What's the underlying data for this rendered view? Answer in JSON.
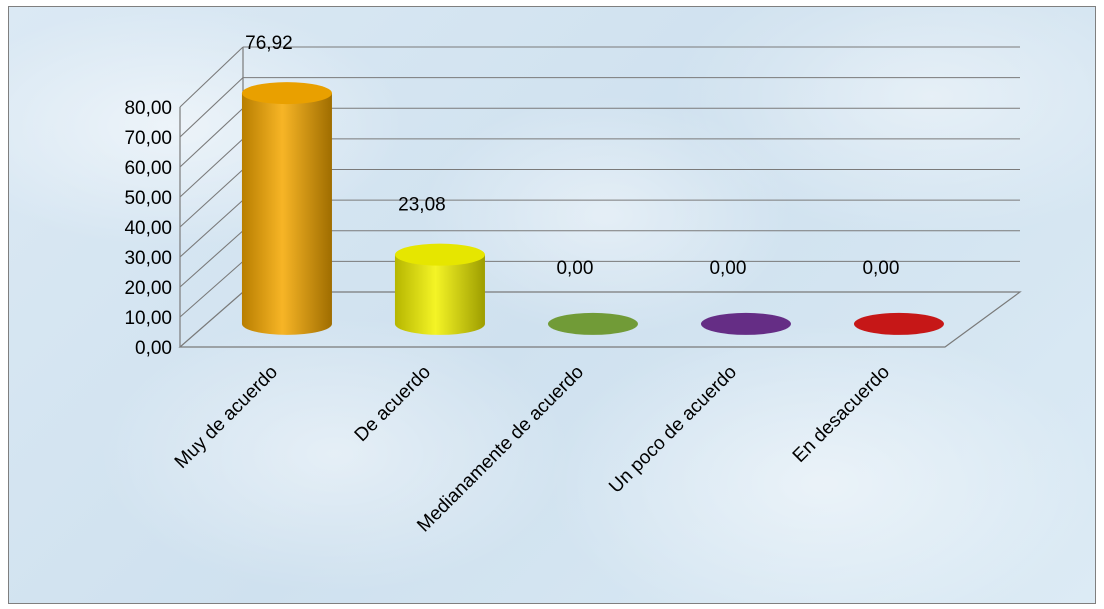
{
  "chart_data": {
    "type": "bar",
    "style": "3d-cylinder",
    "title": "",
    "xlabel": "",
    "ylabel": "",
    "categories": [
      "Muy de acuerdo",
      "De acuerdo",
      "Medianamente de acuerdo",
      "Un poco de acuerdo",
      "En desacuerdo"
    ],
    "values": [
      76.92,
      23.08,
      0.0,
      0.0,
      0.0
    ],
    "data_labels": [
      "76,92",
      "23,08",
      "0,00",
      "0,00",
      "0,00"
    ],
    "colors": [
      "#f5a800",
      "#f2f200",
      "#77a33a",
      "#6a2f8c",
      "#d01818"
    ],
    "ylim": [
      0,
      80
    ],
    "y_ticks": [
      "0,00",
      "10,00",
      "20,00",
      "30,00",
      "40,00",
      "50,00",
      "60,00",
      "70,00",
      "80,00"
    ],
    "y_tick_values": [
      0,
      10,
      20,
      30,
      40,
      50,
      60,
      70,
      80
    ],
    "grid": true,
    "legend": "none"
  }
}
